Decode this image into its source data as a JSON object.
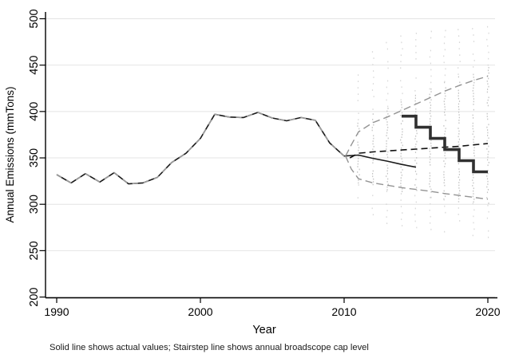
{
  "chart_data": {
    "type": "line",
    "title": "",
    "xlabel": "Year",
    "ylabel": "Annual Emissions (mmTons)",
    "footnote": "Solid line shows actual values; Stairstep line shows annual broadscope cap level",
    "x_ticks": [
      1990,
      2000,
      2010,
      2020
    ],
    "y_ticks": [
      200,
      250,
      300,
      350,
      400,
      450,
      500
    ],
    "xlim": [
      1989.2,
      2020.7
    ],
    "ylim": [
      200,
      500
    ],
    "grid": true,
    "legend_position": "none",
    "colors": {
      "axis": "#000000",
      "grid": "#e4e4e4",
      "actual_line": "#1a1a1a",
      "fan_gray": "#949494",
      "cap_line": "#303030",
      "dots_inner": "#c3c3c3",
      "dots_outer": "#d7d7d7"
    },
    "series": [
      {
        "name": "actual-values",
        "label": "Solid line shows actual values",
        "style": "solid",
        "color": "#1a1a1a",
        "x": [
          1990,
          1991,
          1992,
          1993,
          1994,
          1995,
          1996,
          1997,
          1998,
          1999,
          2000,
          2001,
          2002,
          2003,
          2004,
          2005,
          2006,
          2007,
          2008,
          2009,
          2010,
          2011,
          2012,
          2013,
          2014,
          2015
        ],
        "y": [
          332,
          323,
          333,
          324,
          334,
          322,
          323,
          329,
          345,
          355,
          371,
          397,
          394,
          393.5,
          399,
          393,
          390,
          393.5,
          390.5,
          366,
          352,
          353,
          349.5,
          346.5,
          343,
          340
        ],
        "historical_gray_dash_overlay_until": 2010
      },
      {
        "name": "central-projection",
        "label": "Central projection (dashed)",
        "style": "dashed-black",
        "color": "#111111",
        "x": [
          2010.4,
          2011,
          2012,
          2013,
          2014,
          2015,
          2016,
          2017,
          2018,
          2019,
          2020
        ],
        "y": [
          350,
          355,
          356.5,
          357.5,
          358.5,
          359.5,
          360.5,
          361.5,
          362.5,
          364,
          365.5
        ]
      },
      {
        "name": "upper-range",
        "label": "Upper range (gray dashed)",
        "style": "dashed-gray",
        "color": "#949494",
        "x": [
          2010.1,
          2010.5,
          2011,
          2012,
          2013,
          2014,
          2015,
          2016,
          2017,
          2018,
          2019,
          2020
        ],
        "y": [
          352,
          364,
          378,
          388,
          394,
          401,
          408,
          415,
          422,
          428,
          433.5,
          438
        ]
      },
      {
        "name": "lower-range",
        "label": "Lower range (gray dashed)",
        "style": "dashed-gray",
        "color": "#949494",
        "x": [
          2010.1,
          2010.5,
          2011,
          2012,
          2013,
          2014,
          2015,
          2016,
          2017,
          2018,
          2019,
          2020
        ],
        "y": [
          352,
          338,
          327.5,
          323,
          320.5,
          318,
          316,
          314,
          311.5,
          309.5,
          307.5,
          305.5
        ]
      },
      {
        "name": "broadscope-cap",
        "label": "Stairstep line shows annual broadscope cap level",
        "style": "stairstep",
        "color": "#303030",
        "start_year": 2014,
        "step_values": [
          395,
          383,
          371,
          359,
          347,
          335
        ]
      }
    ],
    "simulation_strips": [
      {
        "year": 2011,
        "inner": [
          321.5,
          388
        ],
        "outer": [
          295,
          440
        ]
      },
      {
        "year": 2012,
        "inner": [
          317,
          398
        ],
        "outer": [
          287,
          465
        ]
      },
      {
        "year": 2013,
        "inner": [
          314.5,
          404
        ],
        "outer": [
          280,
          475
        ]
      },
      {
        "year": 2014,
        "inner": [
          312,
          411
        ],
        "outer": [
          276,
          482
        ]
      },
      {
        "year": 2015,
        "inner": [
          310,
          418
        ],
        "outer": [
          273,
          485
        ]
      },
      {
        "year": 2016,
        "inner": [
          308,
          425
        ],
        "outer": [
          271,
          487
        ]
      },
      {
        "year": 2017,
        "inner": [
          305.5,
          432
        ],
        "outer": [
          269,
          488
        ]
      },
      {
        "year": 2018,
        "inner": [
          303.5,
          438
        ],
        "outer": [
          267,
          489
        ]
      },
      {
        "year": 2019,
        "inner": [
          301.5,
          443.5
        ],
        "outer": [
          265,
          490
        ]
      },
      {
        "year": 2020,
        "inner": [
          299.5,
          448
        ],
        "outer": [
          263,
          492
        ]
      }
    ]
  }
}
